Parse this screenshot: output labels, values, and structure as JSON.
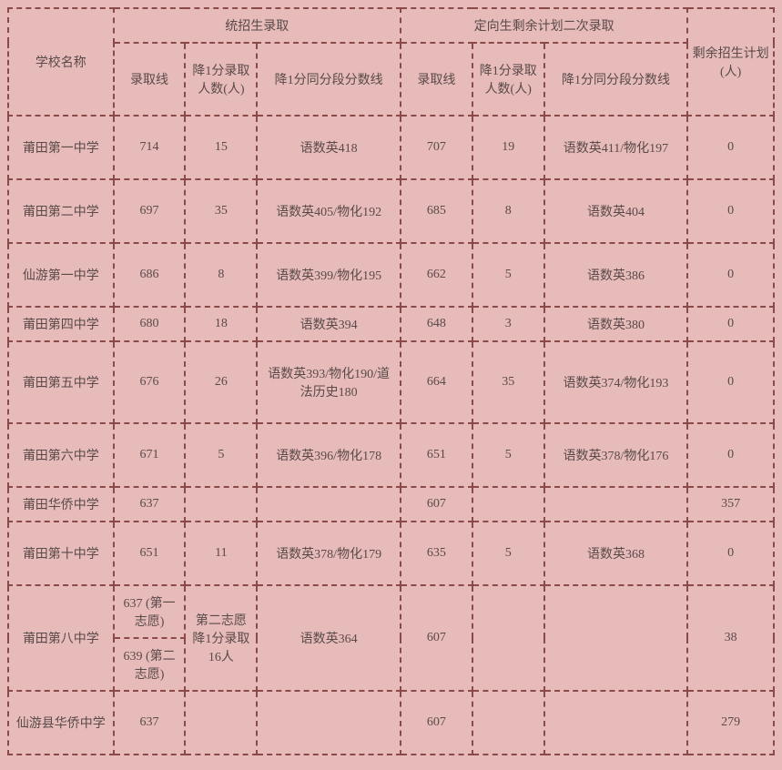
{
  "colors": {
    "background": "#e6bbb9",
    "border": "#8b4a4a",
    "text": "#5a4a4a"
  },
  "typography": {
    "font_family": "SimSun / 宋体",
    "font_size_pt": 11
  },
  "table": {
    "type": "table",
    "headers": {
      "school": "学校名称",
      "group1": "统招生录取",
      "group2": "定向生剩余计划二次录取",
      "g1_score": "录取线",
      "g1_count": "降1分录取人数(人)",
      "g1_subj": "降1分同分段分数线",
      "g2_score": "录取线",
      "g2_count": "降1分录取人数(人)",
      "g2_subj": "降1分同分段分数线",
      "remain": "剩余招生计划(人)"
    },
    "rows": [
      {
        "school": "莆田第一中学",
        "g1_score": "714",
        "g1_count": "15",
        "g1_subj": "语数英418",
        "g2_score": "707",
        "g2_count": "19",
        "g2_subj": "语数英411/物化197",
        "remain": "0"
      },
      {
        "school": "莆田第二中学",
        "g1_score": "697",
        "g1_count": "35",
        "g1_subj": "语数英405/物化192",
        "g2_score": "685",
        "g2_count": "8",
        "g2_subj": "语数英404",
        "remain": "0"
      },
      {
        "school": "仙游第一中学",
        "g1_score": "686",
        "g1_count": "8",
        "g1_subj": "语数英399/物化195",
        "g2_score": "662",
        "g2_count": "5",
        "g2_subj": "语数英386",
        "remain": "0"
      },
      {
        "school": "莆田第四中学",
        "g1_score": "680",
        "g1_count": "18",
        "g1_subj": "语数英394",
        "g2_score": "648",
        "g2_count": "3",
        "g2_subj": "语数英380",
        "remain": "0"
      },
      {
        "school": "莆田第五中学",
        "g1_score": "676",
        "g1_count": "26",
        "g1_subj": "语数英393/物化190/道法历史180",
        "g2_score": "664",
        "g2_count": "35",
        "g2_subj": "语数英374/物化193",
        "remain": "0"
      },
      {
        "school": "莆田第六中学",
        "g1_score": "671",
        "g1_count": "5",
        "g1_subj": "语数英396/物化178",
        "g2_score": "651",
        "g2_count": "5",
        "g2_subj": "语数英378/物化176",
        "remain": "0"
      },
      {
        "school": "莆田华侨中学",
        "g1_score": "637",
        "g1_count": "",
        "g1_subj": "",
        "g2_score": "607",
        "g2_count": "",
        "g2_subj": "",
        "remain": "357"
      },
      {
        "school": "莆田第十中学",
        "g1_score": "651",
        "g1_count": "11",
        "g1_subj": "语数英378/物化179",
        "g2_score": "635",
        "g2_count": "5",
        "g2_subj": "语数英368",
        "remain": "0"
      },
      {
        "school": "莆田第八中学",
        "g1_score_a": "637 (第一志愿)",
        "g1_score_b": "639 (第二志愿)",
        "g1_count": "第二志愿降1分录取16人",
        "g1_subj": "语数英364",
        "g2_score": "607",
        "g2_count": "",
        "g2_subj": "",
        "remain": "38"
      },
      {
        "school": "仙游县华侨中学",
        "g1_score": "637",
        "g1_count": "",
        "g1_subj": "",
        "g2_score": "607",
        "g2_count": "",
        "g2_subj": "",
        "remain": "279"
      }
    ]
  }
}
